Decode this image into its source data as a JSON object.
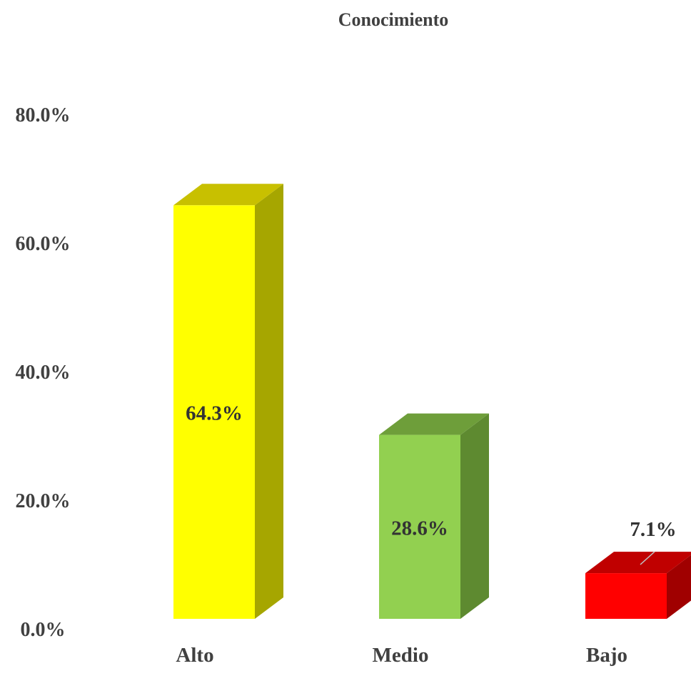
{
  "chart_data": {
    "type": "bar",
    "title": "Conocimiento",
    "categories": [
      "Alto",
      "Medio",
      "Bajo"
    ],
    "values": [
      64.3,
      28.6,
      7.1
    ],
    "data_labels": [
      "64.3%",
      "28.6%",
      "7.1%"
    ],
    "ylim": [
      0,
      80
    ],
    "yticks": [
      0,
      20,
      40,
      60,
      80
    ],
    "ytick_labels": [
      "0.0%",
      "20.0%",
      "40.0%",
      "60.0%",
      "80.0%"
    ],
    "grid": false,
    "legend": "none",
    "style": "3d-column",
    "colors": {
      "Alto": {
        "front": "#FFFF00",
        "top": "#C8C000",
        "side": "#A6A600"
      },
      "Medio": {
        "front": "#92D050",
        "top": "#6E9E3A",
        "side": "#5E8A30"
      },
      "Bajo": {
        "front": "#FF0000",
        "top": "#C00000",
        "side": "#A00000"
      }
    }
  }
}
